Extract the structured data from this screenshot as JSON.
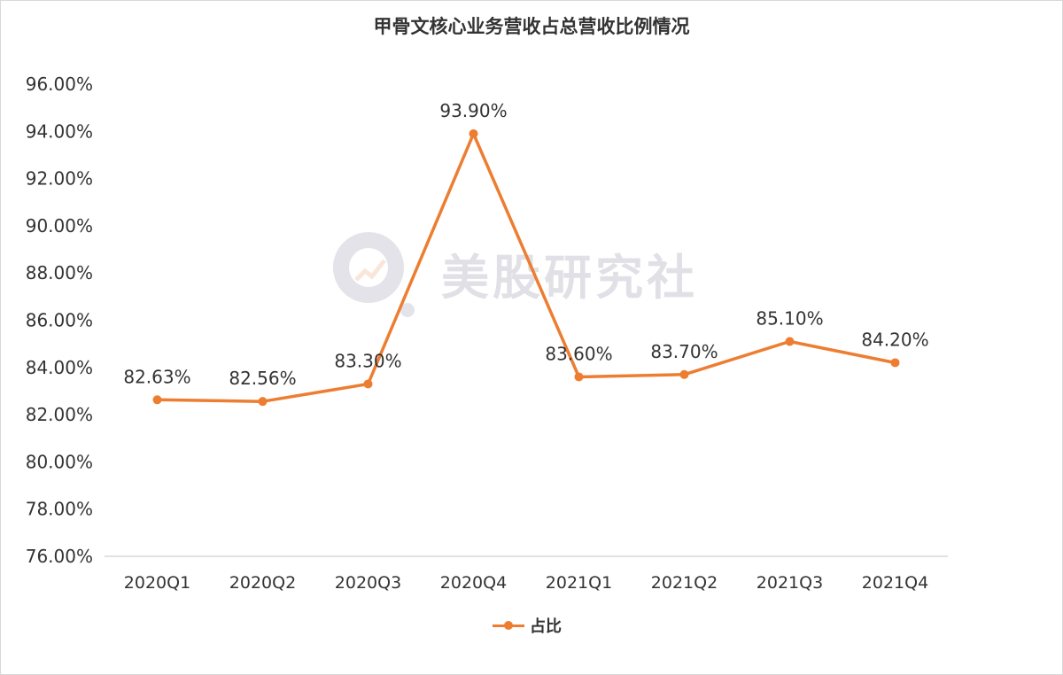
{
  "chart_data": {
    "type": "line",
    "title": "甲骨文核心业务营收占总营收比例情况",
    "categories": [
      "2020Q1",
      "2020Q2",
      "2020Q3",
      "2020Q4",
      "2021Q1",
      "2021Q2",
      "2021Q3",
      "2021Q4"
    ],
    "series": [
      {
        "name": "占比",
        "values": [
          82.63,
          82.56,
          83.3,
          93.9,
          83.6,
          83.7,
          85.1,
          84.2
        ],
        "data_labels": [
          "82.63%",
          "82.56%",
          "83.30%",
          "93.90%",
          "83.60%",
          "83.70%",
          "85.10%",
          "84.20%"
        ],
        "color": "#ED7D31"
      }
    ],
    "y_ticks": [
      "76.00%",
      "78.00%",
      "80.00%",
      "82.00%",
      "84.00%",
      "86.00%",
      "88.00%",
      "90.00%",
      "92.00%",
      "94.00%",
      "96.00%"
    ],
    "ylim": [
      76,
      96
    ],
    "xlabel": "",
    "ylabel": "",
    "grid": false,
    "legend_position": "bottom",
    "line_color": "#ED7D31"
  },
  "watermark": {
    "text": "美股研究社",
    "icon": "magnifier-chart-logo"
  }
}
